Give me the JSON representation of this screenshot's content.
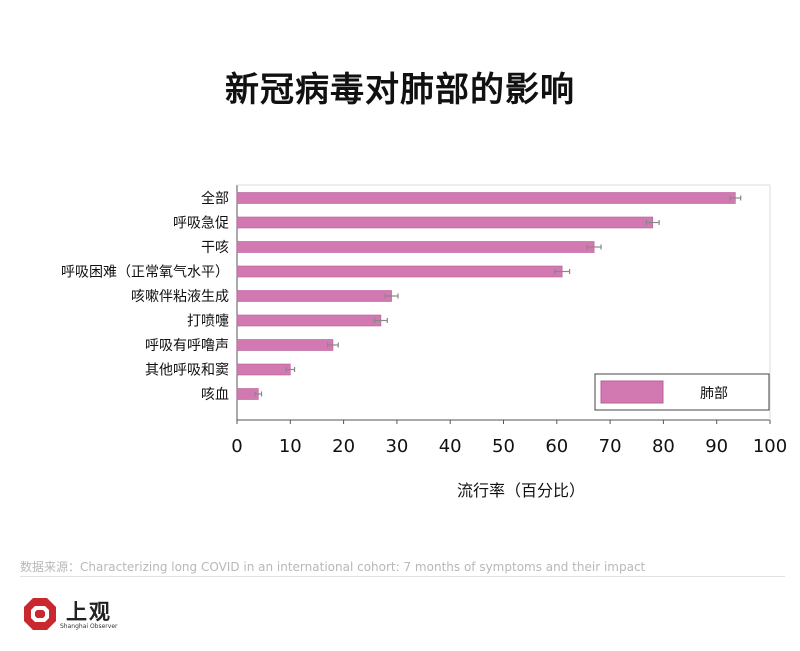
{
  "title": "新冠病毒对肺部的影响",
  "source_text": "数据来源：Characterizing long COVID in an international cohort: 7 months of symptoms and their impact",
  "logo": {
    "name": "上观",
    "subtitle": "Shanghai Observer"
  },
  "colors": {
    "bar": "#d179b0",
    "bar_stroke": "#b85f98",
    "error": "#888888",
    "axis": "#555555"
  },
  "chart_data": {
    "type": "bar",
    "orientation": "horizontal",
    "categories": [
      "全部",
      "呼吸急促",
      "干咳",
      "呼吸困难（正常氧气水平）",
      "咳嗽伴粘液生成",
      "打喷嚏",
      "呼吸有呼噜声",
      "其他呼吸和窦",
      "咳血"
    ],
    "series": [
      {
        "name": "肺部",
        "values": [
          93.5,
          78,
          67,
          61,
          29,
          27,
          18,
          10,
          4
        ],
        "errors": [
          1.0,
          1.2,
          1.3,
          1.4,
          1.2,
          1.2,
          1.0,
          0.8,
          0.6
        ]
      }
    ],
    "xlabel": "流行率（百分比）",
    "ylabel": "",
    "xlim": [
      0,
      100
    ],
    "xticks": [
      0,
      10,
      20,
      30,
      40,
      50,
      60,
      70,
      80,
      90,
      100
    ],
    "grid": false,
    "legend_position": "bottom-right"
  }
}
